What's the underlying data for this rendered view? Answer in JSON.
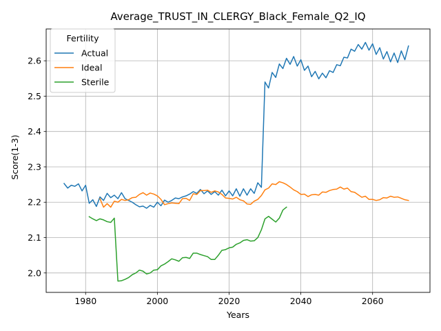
{
  "chart_data": {
    "type": "line",
    "title": "Average_TRUST_IN_CLERGY_Black_Female_Q2_IQ",
    "xlabel": "Years",
    "ylabel": "Score(1-3)",
    "xlim": [
      1969,
      2076
    ],
    "ylim": [
      1.945,
      2.69
    ],
    "xticks": [
      1980,
      2000,
      2020,
      2040,
      2060
    ],
    "yticks": [
      2.0,
      2.1,
      2.2,
      2.3,
      2.4,
      2.5,
      2.6
    ],
    "ytick_labels": [
      "2.0",
      "2.1",
      "2.2",
      "2.3",
      "2.4",
      "2.5",
      "2.6"
    ],
    "grid": true,
    "legend": {
      "title": "Fertility",
      "placement": "top-left"
    },
    "series": [
      {
        "name": "Actual",
        "color": "#1f77b4",
        "x": [
          1974,
          1975,
          1976,
          1977,
          1978,
          1979,
          1980,
          1981,
          1982,
          1983,
          1984,
          1985,
          1986,
          1987,
          1988,
          1989,
          1990,
          1991,
          1992,
          1993,
          1994,
          1995,
          1996,
          1997,
          1998,
          1999,
          2000,
          2001,
          2002,
          2003,
          2004,
          2005,
          2006,
          2007,
          2008,
          2009,
          2010,
          2011,
          2012,
          2013,
          2014,
          2015,
          2016,
          2017,
          2018,
          2019,
          2020,
          2021,
          2022,
          2023,
          2024,
          2025,
          2026,
          2027,
          2028,
          2029,
          2030,
          2031,
          2032,
          2033,
          2034,
          2035,
          2036,
          2037,
          2038,
          2039,
          2040,
          2041,
          2042,
          2043,
          2044,
          2045,
          2046,
          2047,
          2048,
          2049,
          2050,
          2051,
          2052,
          2053,
          2054,
          2055,
          2056,
          2057,
          2058,
          2059,
          2060,
          2061,
          2062,
          2063,
          2064,
          2065,
          2066,
          2067,
          2068,
          2069,
          2070
        ],
        "y": [
          2.253,
          2.24,
          2.248,
          2.245,
          2.252,
          2.232,
          2.248,
          2.197,
          2.207,
          2.188,
          2.215,
          2.205,
          2.225,
          2.213,
          2.22,
          2.21,
          2.227,
          2.21,
          2.205,
          2.2,
          2.193,
          2.187,
          2.189,
          2.183,
          2.191,
          2.186,
          2.2,
          2.19,
          2.206,
          2.2,
          2.205,
          2.212,
          2.21,
          2.215,
          2.218,
          2.223,
          2.23,
          2.225,
          2.236,
          2.224,
          2.232,
          2.222,
          2.23,
          2.22,
          2.234,
          2.218,
          2.232,
          2.218,
          2.238,
          2.217,
          2.238,
          2.22,
          2.238,
          2.225,
          2.255,
          2.242,
          2.54,
          2.523,
          2.567,
          2.553,
          2.591,
          2.578,
          2.607,
          2.59,
          2.612,
          2.585,
          2.603,
          2.573,
          2.585,
          2.555,
          2.57,
          2.549,
          2.565,
          2.552,
          2.572,
          2.567,
          2.589,
          2.586,
          2.61,
          2.608,
          2.633,
          2.627,
          2.646,
          2.633,
          2.652,
          2.63,
          2.648,
          2.618,
          2.637,
          2.605,
          2.626,
          2.597,
          2.622,
          2.595,
          2.628,
          2.603,
          2.642
        ]
      },
      {
        "name": "Ideal",
        "color": "#ff7f0e",
        "x": [
          1984,
          1985,
          1986,
          1987,
          1988,
          1989,
          1990,
          1991,
          1992,
          1993,
          1994,
          1995,
          1996,
          1997,
          1998,
          1999,
          2000,
          2001,
          2002,
          2003,
          2004,
          2005,
          2006,
          2007,
          2008,
          2009,
          2010,
          2011,
          2012,
          2013,
          2014,
          2015,
          2016,
          2017,
          2018,
          2019,
          2020,
          2021,
          2022,
          2023,
          2024,
          2025,
          2026,
          2027,
          2028,
          2029,
          2030,
          2031,
          2032,
          2033,
          2034,
          2035,
          2036,
          2037,
          2038,
          2039,
          2040,
          2041,
          2042,
          2043,
          2044,
          2045,
          2046,
          2047,
          2048,
          2049,
          2050,
          2051,
          2052,
          2053,
          2054,
          2055,
          2056,
          2057,
          2058,
          2059,
          2060,
          2061,
          2062,
          2063,
          2064,
          2065,
          2066,
          2067,
          2068,
          2069,
          2070
        ],
        "y": [
          2.21,
          2.186,
          2.196,
          2.186,
          2.203,
          2.2,
          2.208,
          2.205,
          2.207,
          2.213,
          2.214,
          2.222,
          2.227,
          2.22,
          2.226,
          2.223,
          2.218,
          2.208,
          2.193,
          2.196,
          2.198,
          2.197,
          2.196,
          2.21,
          2.211,
          2.205,
          2.224,
          2.222,
          2.233,
          2.233,
          2.234,
          2.228,
          2.232,
          2.229,
          2.222,
          2.212,
          2.211,
          2.209,
          2.214,
          2.207,
          2.204,
          2.195,
          2.194,
          2.203,
          2.208,
          2.219,
          2.235,
          2.24,
          2.252,
          2.25,
          2.258,
          2.255,
          2.25,
          2.243,
          2.235,
          2.23,
          2.222,
          2.223,
          2.216,
          2.221,
          2.222,
          2.22,
          2.229,
          2.228,
          2.233,
          2.236,
          2.237,
          2.243,
          2.237,
          2.24,
          2.23,
          2.228,
          2.221,
          2.214,
          2.217,
          2.208,
          2.208,
          2.205,
          2.207,
          2.213,
          2.212,
          2.217,
          2.214,
          2.215,
          2.211,
          2.207,
          2.205
        ]
      },
      {
        "name": "Sterile",
        "color": "#2ca02c",
        "x": [
          1981,
          1982,
          1983,
          1984,
          1985,
          1986,
          1987,
          1988,
          1989,
          1990,
          1991,
          1992,
          1993,
          1994,
          1995,
          1996,
          1997,
          1998,
          1999,
          2000,
          2001,
          2002,
          2003,
          2004,
          2005,
          2006,
          2007,
          2008,
          2009,
          2010,
          2011,
          2012,
          2013,
          2014,
          2015,
          2016,
          2017,
          2018,
          2019,
          2020,
          2021,
          2022,
          2023,
          2024,
          2025,
          2026,
          2027,
          2028,
          2029,
          2030,
          2031,
          2032,
          2033,
          2034,
          2035,
          2036
        ],
        "y": [
          2.159,
          2.153,
          2.148,
          2.153,
          2.15,
          2.145,
          2.143,
          2.155,
          1.977,
          1.978,
          1.982,
          1.987,
          1.995,
          2.0,
          2.008,
          2.005,
          1.997,
          2.0,
          2.008,
          2.009,
          2.02,
          2.025,
          2.032,
          2.04,
          2.037,
          2.033,
          2.043,
          2.044,
          2.041,
          2.056,
          2.056,
          2.052,
          2.049,
          2.046,
          2.038,
          2.038,
          2.05,
          2.064,
          2.066,
          2.071,
          2.073,
          2.081,
          2.085,
          2.092,
          2.094,
          2.09,
          2.091,
          2.1,
          2.122,
          2.153,
          2.16,
          2.152,
          2.144,
          2.155,
          2.178,
          2.186
        ]
      }
    ]
  }
}
